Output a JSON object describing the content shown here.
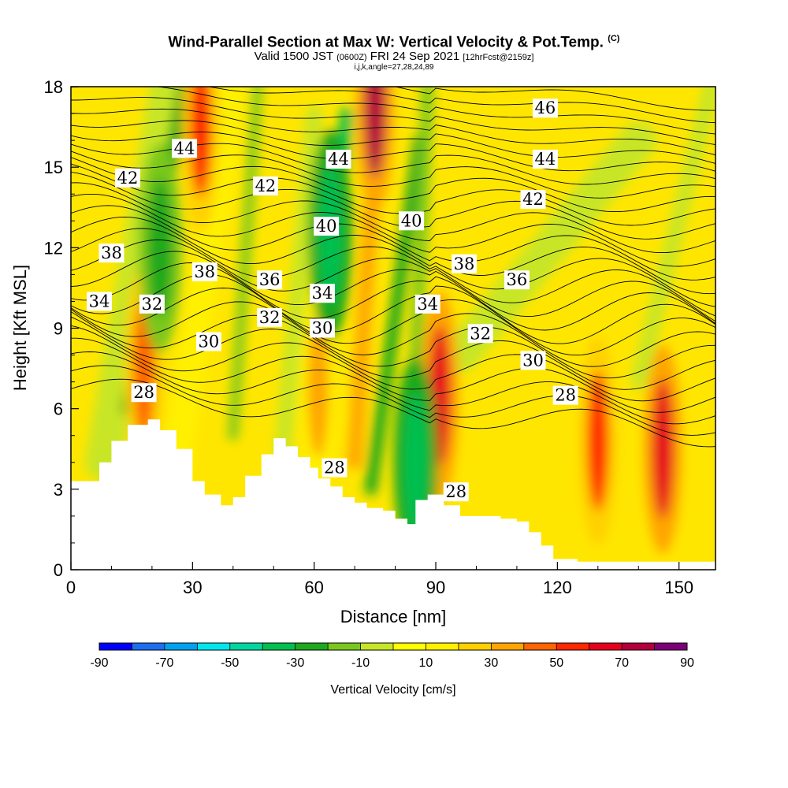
{
  "header": {
    "title_main": "Wind-Parallel Section at Max W: Vertical Velocity & Pot.Temp.",
    "title_badge": "(C)",
    "valid_prefix": "Valid 1500 JST",
    "valid_utc": "(0600Z)",
    "valid_date": "FRI 24 Sep 2021",
    "forecast_note": "[12hrFcst@2159z]",
    "indices": "i,j,k,angle=27,28,24,89"
  },
  "colorbar": {
    "title": "Vertical Velocity [cm/s]",
    "tick_labels": [
      "-90",
      "-70",
      "-50",
      "-30",
      "-10",
      "10",
      "30",
      "50",
      "70",
      "90"
    ],
    "levels": [
      -90,
      -80,
      -70,
      -60,
      -50,
      -40,
      -30,
      -20,
      -10,
      0,
      10,
      20,
      30,
      40,
      50,
      60,
      70,
      80,
      90
    ],
    "colors": [
      "#0000ff",
      "#1e6ef0",
      "#00a2f0",
      "#00e6ef",
      "#00d7a0",
      "#00c050",
      "#1ea81e",
      "#7ac81e",
      "#c8e628",
      "#ffff00",
      "#fff000",
      "#ffd000",
      "#ffa500",
      "#ff6400",
      "#ff2800",
      "#e6001e",
      "#b4003c",
      "#7c0078"
    ]
  },
  "chart_data": {
    "type": "heatmap",
    "title": "Wind-Parallel Section at Max W: Vertical Velocity & Pot.Temp.",
    "xlabel": "Distance [nm]",
    "ylabel": "Height [Kft MSL]",
    "xlim": [
      0,
      159
    ],
    "ylim": [
      0,
      18
    ],
    "x_ticks": [
      0,
      30,
      60,
      90,
      120,
      150
    ],
    "y_ticks": [
      0,
      3,
      6,
      9,
      12,
      15,
      18
    ],
    "x_tick_labels": [
      "0",
      "30",
      "60",
      "90",
      "120",
      "150"
    ],
    "y_tick_labels": [
      "0",
      "3",
      "6",
      "9",
      "12",
      "15",
      "18"
    ],
    "terrain_profile": {
      "x": [
        0,
        3,
        7,
        10,
        14,
        19,
        22,
        26,
        30,
        33,
        37,
        40,
        43,
        47,
        50,
        53,
        56,
        59,
        61,
        64,
        67,
        70,
        73,
        77,
        80,
        83,
        85,
        88,
        92,
        96,
        100,
        106,
        110,
        113,
        116,
        119,
        125,
        130,
        135,
        140,
        145,
        150,
        155,
        159
      ],
      "height": [
        3.3,
        3.3,
        4.0,
        4.8,
        5.4,
        5.6,
        5.2,
        4.5,
        3.3,
        2.8,
        2.4,
        2.7,
        3.5,
        4.3,
        4.9,
        4.6,
        4.2,
        3.8,
        3.4,
        3.1,
        2.7,
        2.5,
        2.3,
        2.2,
        1.9,
        1.7,
        2.6,
        2.8,
        2.4,
        2.0,
        2.0,
        1.9,
        1.8,
        1.4,
        0.9,
        0.4,
        0.3,
        0.3,
        0.3,
        0.3,
        0.3,
        0.3,
        0.3,
        0.3
      ]
    },
    "vertical_velocity_features": [
      {
        "sign": "updraft",
        "x": 32,
        "height": 16.5,
        "max": 50
      },
      {
        "sign": "updraft",
        "x": 75,
        "height": 17.2,
        "max": 70
      },
      {
        "sign": "updraft",
        "x": 91,
        "height": 6.5,
        "max": 60
      },
      {
        "sign": "updraft",
        "x": 130,
        "height": 4.8,
        "max": 50
      },
      {
        "sign": "updraft",
        "x": 146,
        "height": 4.5,
        "max": 60
      },
      {
        "sign": "updraft",
        "x": 18,
        "height": 7.5,
        "max": 40
      },
      {
        "sign": "updraft",
        "x": 61,
        "height": 6.8,
        "max": 30
      },
      {
        "sign": "downdraft",
        "x": 22,
        "height": 12.0,
        "max": -30
      },
      {
        "sign": "downdraft",
        "x": 64,
        "height": 12.5,
        "max": -40
      },
      {
        "sign": "downdraft",
        "x": 85,
        "height": 4.0,
        "max": -40
      }
    ],
    "contour_labels": [
      {
        "text": "46",
        "x": 117,
        "y": 17.2
      },
      {
        "text": "44",
        "x": 28,
        "y": 15.7
      },
      {
        "text": "44",
        "x": 66,
        "y": 15.3
      },
      {
        "text": "44",
        "x": 117,
        "y": 15.3
      },
      {
        "text": "42",
        "x": 14,
        "y": 14.6
      },
      {
        "text": "42",
        "x": 48,
        "y": 14.3
      },
      {
        "text": "42",
        "x": 114,
        "y": 13.8
      },
      {
        "text": "40",
        "x": 63,
        "y": 12.8
      },
      {
        "text": "40",
        "x": 84,
        "y": 13.0
      },
      {
        "text": "38",
        "x": 10,
        "y": 11.8
      },
      {
        "text": "38",
        "x": 33,
        "y": 11.1
      },
      {
        "text": "38",
        "x": 97,
        "y": 11.4
      },
      {
        "text": "36",
        "x": 49,
        "y": 10.8
      },
      {
        "text": "36",
        "x": 110,
        "y": 10.8
      },
      {
        "text": "34",
        "x": 7,
        "y": 10.0
      },
      {
        "text": "34",
        "x": 62,
        "y": 10.3
      },
      {
        "text": "34",
        "x": 88,
        "y": 9.9
      },
      {
        "text": "32",
        "x": 20,
        "y": 9.9
      },
      {
        "text": "32",
        "x": 49,
        "y": 9.4
      },
      {
        "text": "32",
        "x": 101,
        "y": 8.8
      },
      {
        "text": "30",
        "x": 34,
        "y": 8.5
      },
      {
        "text": "30",
        "x": 62,
        "y": 9.0
      },
      {
        "text": "30",
        "x": 114,
        "y": 7.8
      },
      {
        "text": "28",
        "x": 18,
        "y": 6.6
      },
      {
        "text": "28",
        "x": 65,
        "y": 3.8
      },
      {
        "text": "28",
        "x": 95,
        "y": 2.9
      },
      {
        "text": "28",
        "x": 122,
        "y": 6.5
      }
    ]
  }
}
